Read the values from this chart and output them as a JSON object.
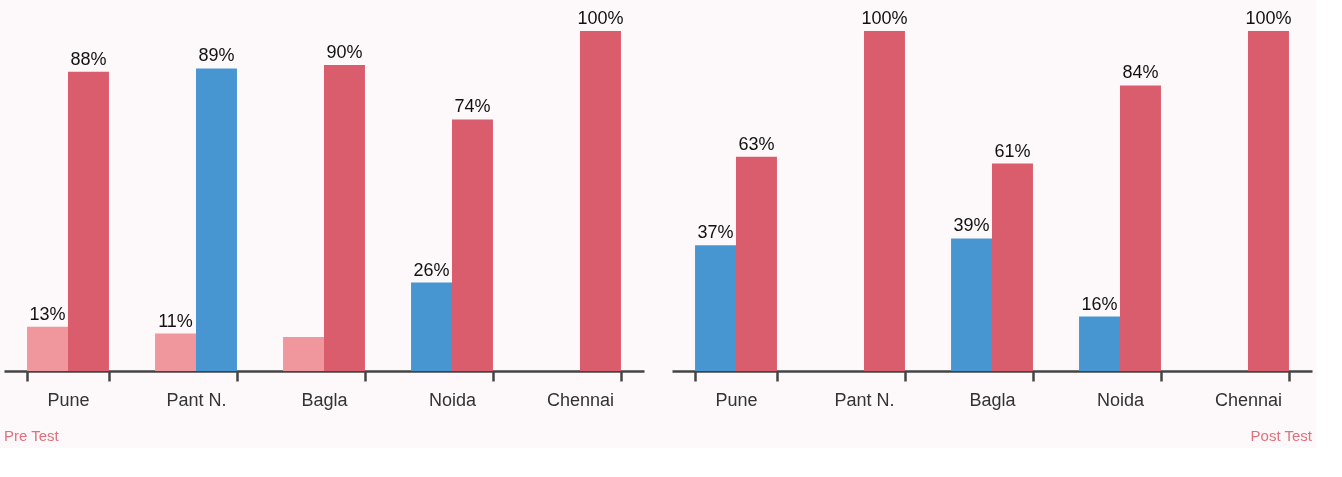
{
  "chart_data": [
    {
      "type": "bar",
      "title": "Pre Test",
      "categories": [
        "Pune",
        "Pant N.",
        "Bagla",
        "Noida",
        "Chennai"
      ],
      "series": [
        {
          "colors": [
            "#f0979e",
            "#f0979e",
            "#f0979e",
            "#4796d2",
            null
          ],
          "values": [
            13,
            11,
            10,
            26,
            null
          ],
          "value_labels": [
            "13%",
            "11%",
            null,
            "26%",
            null
          ]
        },
        {
          "colors": [
            "#d95d6c",
            "#4796d2",
            "#d95d6c",
            "#d95d6c",
            "#d95d6c"
          ],
          "values": [
            88,
            89,
            90,
            74,
            100
          ],
          "value_labels": [
            "88%",
            "89%",
            "90%",
            "74%",
            "100%"
          ]
        }
      ]
    },
    {
      "type": "bar",
      "title": "Post Test",
      "categories": [
        "Pune",
        "Pant N.",
        "Bagla",
        "Noida",
        "Chennai"
      ],
      "series": [
        {
          "colors": [
            "#4796d2",
            null,
            "#4796d2",
            "#4796d2",
            null
          ],
          "values": [
            37,
            null,
            39,
            16,
            null
          ],
          "value_labels": [
            "37%",
            null,
            "39%",
            "16%",
            null
          ]
        },
        {
          "colors": [
            "#d95d6c",
            "#d95d6c",
            "#d95d6c",
            "#d95d6c",
            "#d95d6c"
          ],
          "values": [
            63,
            100,
            61,
            84,
            100
          ],
          "value_labels": [
            "63%",
            "100%",
            "61%",
            "84%",
            "100%"
          ]
        }
      ]
    }
  ]
}
